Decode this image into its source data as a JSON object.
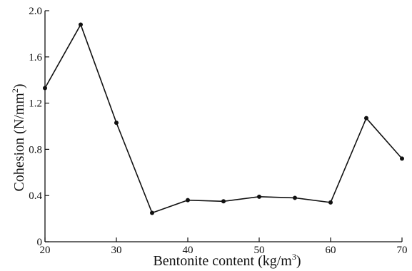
{
  "chart_data": {
    "type": "line",
    "title": "",
    "xlabel": "Bentonite content (kg/m",
    "xlabel_sup": "3",
    "xlabel_tail": ")",
    "ylabel": "Cohesion (N/mm",
    "ylabel_sup": "2",
    "ylabel_tail": ")",
    "xlim": [
      20,
      70
    ],
    "ylim": [
      0,
      2.0
    ],
    "xticks": [
      20,
      30,
      40,
      50,
      60,
      70
    ],
    "yticks": [
      0,
      0.4,
      0.8,
      1.2,
      1.6,
      2.0
    ],
    "xtick_labels": [
      "20",
      "30",
      "40",
      "50",
      "60",
      "70"
    ],
    "ytick_labels": [
      "0",
      "0.4",
      "0.8",
      "1.2",
      "1.6",
      "2.0"
    ],
    "grid": false,
    "series": [
      {
        "x": [
          20,
          25,
          30,
          35,
          40,
          45,
          50,
          55,
          60,
          65,
          70
        ],
        "y": [
          1.33,
          1.88,
          1.03,
          0.25,
          0.36,
          0.35,
          0.39,
          0.38,
          0.34,
          1.07,
          0.72
        ],
        "color": "#111111"
      }
    ]
  }
}
